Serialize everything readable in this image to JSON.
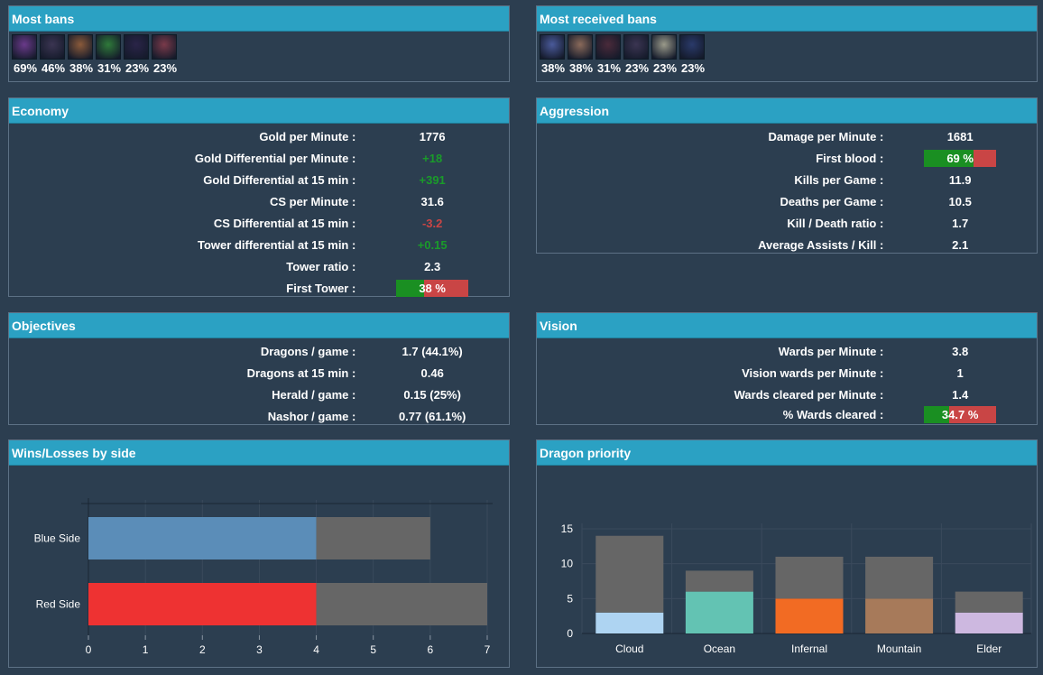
{
  "most_bans": {
    "title": "Most bans",
    "champions": [
      {
        "icon": "champion-portrait-1-icon",
        "pct": "69%",
        "color": "#6a3a8a"
      },
      {
        "icon": "champion-portrait-2-icon",
        "pct": "46%",
        "color": "#3b3552"
      },
      {
        "icon": "champion-portrait-3-icon",
        "pct": "38%",
        "color": "#8a5a3a"
      },
      {
        "icon": "champion-portrait-4-icon",
        "pct": "31%",
        "color": "#2f7a3a"
      },
      {
        "icon": "champion-portrait-5-icon",
        "pct": "23%",
        "color": "#2a2448"
      },
      {
        "icon": "champion-portrait-6-icon",
        "pct": "23%",
        "color": "#7a3a4a"
      }
    ]
  },
  "most_received_bans": {
    "title": "Most received bans",
    "champions": [
      {
        "icon": "champion-portrait-1-icon",
        "pct": "38%",
        "color": "#4a5a9a"
      },
      {
        "icon": "champion-portrait-2-icon",
        "pct": "38%",
        "color": "#8a6a5a"
      },
      {
        "icon": "champion-portrait-3-icon",
        "pct": "31%",
        "color": "#4a2a3a"
      },
      {
        "icon": "champion-portrait-4-icon",
        "pct": "23%",
        "color": "#3b3552"
      },
      {
        "icon": "champion-portrait-5-icon",
        "pct": "23%",
        "color": "#9a9a8a"
      },
      {
        "icon": "champion-portrait-6-icon",
        "pct": "23%",
        "color": "#2a3a6a"
      }
    ]
  },
  "economy": {
    "title": "Economy",
    "rows": [
      {
        "label": "Gold per Minute :",
        "value": "1776",
        "tone": ""
      },
      {
        "label": "Gold Differential per Minute :",
        "value": "+18",
        "tone": "pos"
      },
      {
        "label": "Gold Differential at 15 min :",
        "value": "+391",
        "tone": "pos"
      },
      {
        "label": "CS per Minute :",
        "value": "31.6",
        "tone": ""
      },
      {
        "label": "CS Differential at 15 min :",
        "value": "-3.2",
        "tone": "neg"
      },
      {
        "label": "Tower differential at 15 min :",
        "value": "+0.15",
        "tone": "pos"
      },
      {
        "label": "Tower ratio :",
        "value": "2.3",
        "tone": ""
      }
    ],
    "first_tower": {
      "label": "First Tower :",
      "text": "38 %",
      "fraction": 0.38
    }
  },
  "aggression": {
    "title": "Aggression",
    "damage": {
      "label": "Damage per Minute :",
      "value": "1681"
    },
    "first_blood": {
      "label": "First blood :",
      "text": "69 %",
      "fraction": 0.69
    },
    "rows": [
      {
        "label": "Kills per Game :",
        "value": "11.9"
      },
      {
        "label": "Deaths per Game :",
        "value": "10.5"
      },
      {
        "label": "Kill / Death ratio :",
        "value": "1.7"
      },
      {
        "label": "Average Assists / Kill :",
        "value": "2.1"
      }
    ]
  },
  "objectives": {
    "title": "Objectives",
    "rows": [
      {
        "label": "Dragons / game :",
        "value": "1.7 (44.1%)"
      },
      {
        "label": "Dragons at 15 min :",
        "value": "0.46"
      },
      {
        "label": "Herald / game :",
        "value": "0.15 (25%)"
      },
      {
        "label": "Nashor / game :",
        "value": "0.77 (61.1%)"
      }
    ]
  },
  "vision": {
    "title": "Vision",
    "rows": [
      {
        "label": "Wards per Minute :",
        "value": "3.8"
      },
      {
        "label": "Vision wards per Minute :",
        "value": "1"
      },
      {
        "label": "Wards cleared per Minute :",
        "value": "1.4"
      }
    ],
    "wards_cleared": {
      "label": "% Wards cleared :",
      "text": "34.7 %",
      "fraction": 0.347
    }
  },
  "wins_losses": {
    "title": "Wins/Losses by side"
  },
  "dragon_priority": {
    "title": "Dragon priority"
  },
  "chart_data": [
    {
      "type": "bar",
      "orientation": "horizontal",
      "stacked": true,
      "categories": [
        "Blue Side",
        "Red Side"
      ],
      "category_colors": [
        "#5b8db8",
        "#ee3232"
      ],
      "series": [
        {
          "values": [
            4,
            4
          ],
          "color": "category"
        },
        {
          "values": [
            2,
            3
          ],
          "color": "#666666"
        }
      ],
      "xlim": [
        0,
        7
      ],
      "xticks": [
        0,
        1,
        2,
        3,
        4,
        5,
        6,
        7
      ],
      "grid": true
    },
    {
      "type": "bar",
      "stacked": true,
      "categories": [
        "Cloud",
        "Ocean",
        "Infernal",
        "Mountain",
        "Elder"
      ],
      "category_colors": [
        "#aed4f2",
        "#63c3b3",
        "#f26b23",
        "#a77a5a",
        "#cdb8e0"
      ],
      "series": [
        {
          "values": [
            3,
            6,
            5,
            5,
            3
          ],
          "color": "category"
        },
        {
          "values": [
            11,
            3,
            6,
            6,
            3
          ],
          "color": "#666666"
        }
      ],
      "ylim": [
        0,
        15
      ],
      "yticks": [
        0,
        5,
        10,
        15
      ],
      "grid": true
    }
  ]
}
